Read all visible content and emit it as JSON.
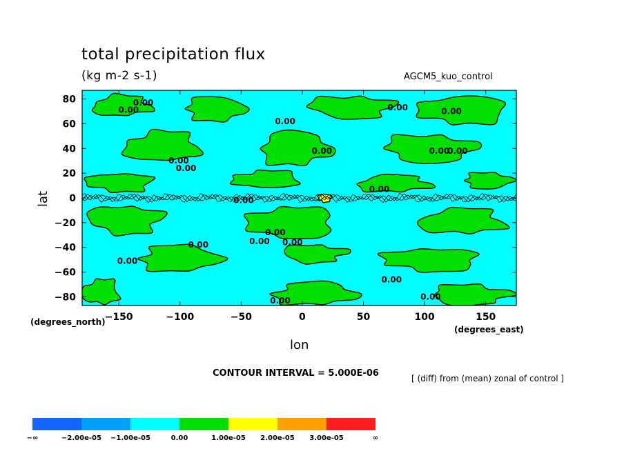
{
  "chart_data": {
    "type": "heatmap",
    "title": "total precipitation flux",
    "units": "(kg m-2 s-1)",
    "dataset": "AGCM5_kuo_control",
    "xlabel": "lon",
    "ylabel": "lat",
    "xunit": "(degrees_east)",
    "yunit": "(degrees_north)",
    "xlim": [
      -180,
      175
    ],
    "ylim": [
      -87,
      87
    ],
    "xticks": [
      -150,
      -100,
      -50,
      0,
      50,
      100,
      150
    ],
    "yticks": [
      -80,
      -60,
      -40,
      -20,
      0,
      20,
      40,
      60,
      80
    ],
    "xticklabels": [
      "-150",
      "-100",
      "-50",
      "0",
      "50",
      "100",
      "150"
    ],
    "yticklabels": [
      "-80",
      "-60",
      "-40",
      "-20",
      "0",
      "20",
      "40",
      "60",
      "80"
    ],
    "contour_interval": "CONTOUR INTERVAL = 5.000E-06",
    "operation_note": "[ (diff) from (mean) zonal of control ]",
    "contour_label_text": "0.00",
    "colorbar": {
      "levels": [
        "-∞",
        "-2.00e-05",
        "-1.00e-05",
        "0.00",
        "1.00e-05",
        "2.00e-05",
        "3.00e-05",
        "∞"
      ],
      "colors": [
        "#1464ff",
        "#00a0ff",
        "#00ffff",
        "#00e000",
        "#ffff00",
        "#ffa000",
        "#ff1e1e"
      ]
    },
    "regions": [
      {
        "level": "0.00 to 1.00e-05",
        "color": "#00e000",
        "lon": [
          -175,
          -120
        ],
        "lat": [
          66,
          83
        ]
      },
      {
        "level": "0.00 to 1.00e-05",
        "color": "#00e000",
        "lon": [
          -100,
          -40
        ],
        "lat": [
          62,
          82
        ]
      },
      {
        "level": "0.00 to 1.00e-05",
        "color": "#00e000",
        "lon": [
          0,
          80
        ],
        "lat": [
          64,
          83
        ]
      },
      {
        "level": "0.00 to 1.00e-05",
        "color": "#00e000",
        "lon": [
          90,
          170
        ],
        "lat": [
          58,
          84
        ]
      },
      {
        "level": "0.00 to 1.00e-05",
        "color": "#00e000",
        "lon": [
          -150,
          -80
        ],
        "lat": [
          28,
          55
        ]
      },
      {
        "level": "0.00 to 1.00e-05",
        "color": "#00e000",
        "lon": [
          -40,
          30
        ],
        "lat": [
          25,
          55
        ]
      },
      {
        "level": "0.00 to 1.00e-05",
        "color": "#00e000",
        "lon": [
          60,
          150
        ],
        "lat": [
          28,
          52
        ]
      },
      {
        "level": "0.00 to 1.00e-05",
        "color": "#00e000",
        "lon": [
          -180,
          -120
        ],
        "lat": [
          5,
          20
        ]
      },
      {
        "level": "0.00 to 1.00e-05",
        "color": "#00e000",
        "lon": [
          -60,
          0
        ],
        "lat": [
          8,
          22
        ]
      },
      {
        "level": "0.00 to 1.00e-05",
        "color": "#00e000",
        "lon": [
          40,
          110
        ],
        "lat": [
          5,
          18
        ]
      },
      {
        "level": "0.00 to 1.00e-05",
        "color": "#00e000",
        "lon": [
          130,
          175
        ],
        "lat": [
          8,
          20
        ]
      },
      {
        "level": "0.00 to 1.00e-05",
        "color": "#00e000",
        "lon": [
          -180,
          -110
        ],
        "lat": [
          -30,
          -5
        ]
      },
      {
        "level": "0.00 to 1.00e-05",
        "color": "#00e000",
        "lon": [
          -50,
          30
        ],
        "lat": [
          -35,
          -5
        ]
      },
      {
        "level": "0.00 to 1.00e-05",
        "color": "#00e000",
        "lon": [
          90,
          170
        ],
        "lat": [
          -30,
          -8
        ]
      },
      {
        "level": "0.00 to 1.00e-05",
        "color": "#00e000",
        "lon": [
          -140,
          -60
        ],
        "lat": [
          -60,
          -38
        ]
      },
      {
        "level": "0.00 to 1.00e-05",
        "color": "#00e000",
        "lon": [
          -20,
          40
        ],
        "lat": [
          -52,
          -38
        ]
      },
      {
        "level": "0.00 to 1.00e-05",
        "color": "#00e000",
        "lon": [
          60,
          150
        ],
        "lat": [
          -60,
          -40
        ]
      },
      {
        "level": "0.00 to 1.00e-05",
        "color": "#00e000",
        "lon": [
          -180,
          -150
        ],
        "lat": [
          -87,
          -65
        ]
      },
      {
        "level": "0.00 to 1.00e-05",
        "color": "#00e000",
        "lon": [
          -30,
          50
        ],
        "lat": [
          -87,
          -68
        ]
      },
      {
        "level": "0.00 to 1.00e-05",
        "color": "#00e000",
        "lon": [
          100,
          175
        ],
        "lat": [
          -87,
          -70
        ]
      },
      {
        "level": "1.00e-05 to 2.00e-05",
        "color": "#ffff00",
        "lon": [
          15,
          22
        ],
        "lat": [
          -2,
          2
        ]
      }
    ],
    "contour_labels": [
      {
        "lon": -130,
        "lat": 77
      },
      {
        "lon": -142,
        "lat": 71
      },
      {
        "lon": 78,
        "lat": 73
      },
      {
        "lon": 122,
        "lat": 70
      },
      {
        "lon": -14,
        "lat": 62
      },
      {
        "lon": 16,
        "lat": 38
      },
      {
        "lon": 112,
        "lat": 38
      },
      {
        "lon": 127,
        "lat": 38
      },
      {
        "lon": -101,
        "lat": 30
      },
      {
        "lon": -95,
        "lat": 24
      },
      {
        "lon": 63,
        "lat": 7
      },
      {
        "lon": -48,
        "lat": -2
      },
      {
        "lon": -22,
        "lat": -28
      },
      {
        "lon": -35,
        "lat": -35
      },
      {
        "lon": -8,
        "lat": -36
      },
      {
        "lon": -85,
        "lat": -38
      },
      {
        "lon": -143,
        "lat": -51
      },
      {
        "lon": 73,
        "lat": -66
      },
      {
        "lon": -18,
        "lat": -83
      },
      {
        "lon": 105,
        "lat": -80
      }
    ]
  }
}
